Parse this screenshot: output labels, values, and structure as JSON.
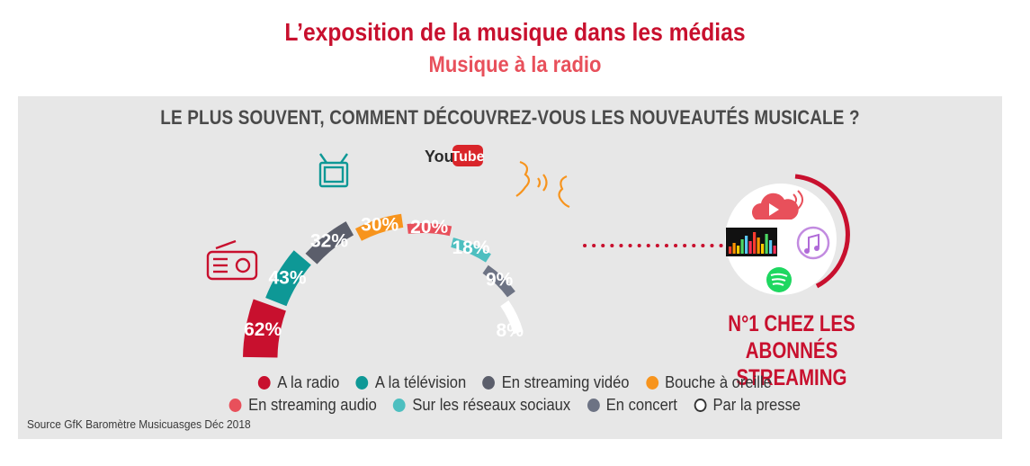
{
  "header": {
    "title": "L’exposition de la musique dans les médias",
    "subtitle": "Musique à la radio"
  },
  "question": "LE PLUS SOUVENT, COMMENT DÉCOUVREZ-VOUS LES NOUVEAUTÉS MUSICALE ?",
  "source": "Source GfK Baromètre Musicuasges Déc 2018",
  "streaming_label": "N°1 CHEZ LES ABONNÉS STREAMING",
  "youtube_logo": {
    "you": "You",
    "tube": "Tube"
  },
  "icons": [
    "radio-icon",
    "tv-icon",
    "youtube-logo",
    "speaking-head-icon",
    "cloud-stream-icon",
    "deezer-icon",
    "itunes-icon",
    "spotify-icon"
  ],
  "chart_data": {
    "type": "semi-donut",
    "categories": [
      "A la radio",
      "A la télévision",
      "En streaming vidéo",
      "Bouche à oreille",
      "En streaming audio",
      "Sur les réseaux sociaux",
      "En concert",
      "Par la presse"
    ],
    "values": [
      62,
      43,
      32,
      30,
      20,
      18,
      9,
      8
    ],
    "labels": [
      "62%",
      "43%",
      "32%",
      "30%",
      "20%",
      "18%",
      "9%",
      "8%"
    ],
    "colors": [
      "#c8102e",
      "#0e9896",
      "#5b5e6b",
      "#f7941d",
      "#e8505b",
      "#4dbfc0",
      "#6d7384",
      "#ffffff"
    ],
    "legend_position": "bottom"
  }
}
